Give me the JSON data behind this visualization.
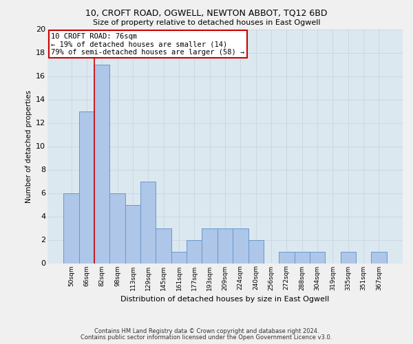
{
  "title": "10, CROFT ROAD, OGWELL, NEWTON ABBOT, TQ12 6BD",
  "subtitle": "Size of property relative to detached houses in East Ogwell",
  "xlabel": "Distribution of detached houses by size in East Ogwell",
  "ylabel": "Number of detached properties",
  "categories": [
    "50sqm",
    "66sqm",
    "82sqm",
    "98sqm",
    "113sqm",
    "129sqm",
    "145sqm",
    "161sqm",
    "177sqm",
    "193sqm",
    "209sqm",
    "224sqm",
    "240sqm",
    "256sqm",
    "272sqm",
    "288sqm",
    "304sqm",
    "319sqm",
    "335sqm",
    "351sqm",
    "367sqm"
  ],
  "values": [
    6,
    13,
    17,
    6,
    5,
    7,
    3,
    1,
    2,
    3,
    3,
    3,
    2,
    0,
    1,
    1,
    1,
    0,
    1,
    0,
    1
  ],
  "bar_color": "#aec6e8",
  "bar_edge_color": "#6699cc",
  "bar_linewidth": 0.7,
  "vline_x": 1.5,
  "vline_color": "#cc0000",
  "annotation_line1": "10 CROFT ROAD: 76sqm",
  "annotation_line2": "← 19% of detached houses are smaller (14)",
  "annotation_line3": "79% of semi-detached houses are larger (58) →",
  "annotation_box_color": "#cc0000",
  "annotation_bg": "#ffffff",
  "ylim": [
    0,
    20
  ],
  "yticks": [
    0,
    2,
    4,
    6,
    8,
    10,
    12,
    14,
    16,
    18,
    20
  ],
  "grid_color": "#c8d4e0",
  "bg_color": "#dce8f0",
  "fig_bg": "#f0f0f0",
  "footer1": "Contains HM Land Registry data © Crown copyright and database right 2024.",
  "footer2": "Contains public sector information licensed under the Open Government Licence v3.0."
}
